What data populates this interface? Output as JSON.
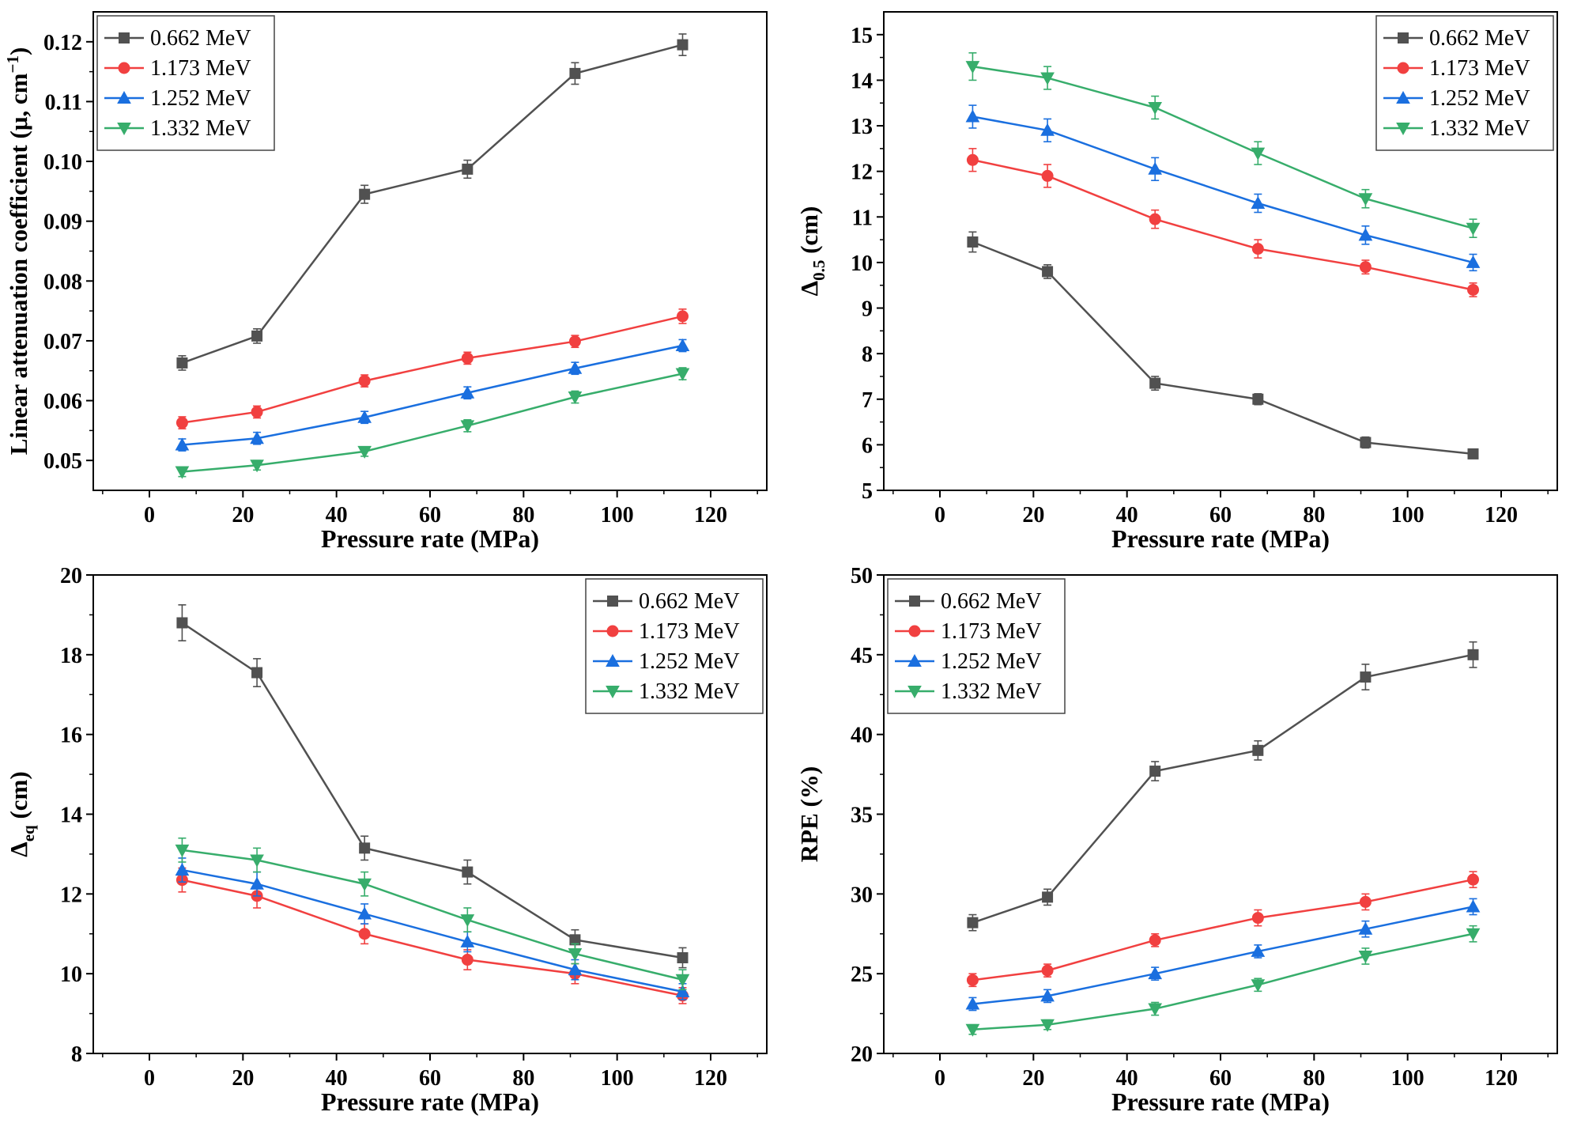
{
  "page": {
    "background": "#ffffff"
  },
  "colors": {
    "series": [
      "#515151",
      "#F14040",
      "#1A6FDF",
      "#37AD6B"
    ],
    "axis": "#000000",
    "legend_border": "#444444"
  },
  "markers": [
    "square",
    "circle",
    "triangle-up",
    "triangle-down"
  ],
  "legend_labels": [
    "0.662 MeV",
    "1.173 MeV",
    "1.252 MeV",
    "1.332 MeV"
  ],
  "chart_data": [
    {
      "type": "line",
      "title": "",
      "xlabel": "Pressure rate (MPa)",
      "ylabel": "Linear attenuation coefficient (μ, cm⁻¹)",
      "ylabel_rich": [
        [
          "Linear attenuation coefficient (μ, cm",
          ""
        ],
        [
          "−1",
          "sup"
        ],
        [
          ")",
          ""
        ]
      ],
      "x": [
        7,
        23,
        46,
        68,
        91,
        114
      ],
      "xlim": [
        -12,
        132
      ],
      "xticks": [
        0,
        20,
        40,
        60,
        80,
        100,
        120
      ],
      "x_minor_step": 10,
      "ylim": [
        0.045,
        0.125
      ],
      "yticks": [
        0.05,
        0.06,
        0.07,
        0.08,
        0.09,
        0.1,
        0.11,
        0.12
      ],
      "y_decimals": 2,
      "y_minor_step": 0.005,
      "legend_position": "top-left",
      "grid": false,
      "series": [
        {
          "name": "0.662 MeV",
          "values": [
            0.0663,
            0.0708,
            0.0945,
            0.0987,
            0.1147,
            0.1195
          ],
          "yerr": [
            0.0012,
            0.0012,
            0.0015,
            0.0015,
            0.0018,
            0.0018
          ]
        },
        {
          "name": "1.173 MeV",
          "values": [
            0.0563,
            0.0581,
            0.0633,
            0.0671,
            0.0699,
            0.0741
          ],
          "yerr": [
            0.001,
            0.001,
            0.001,
            0.001,
            0.001,
            0.0012
          ]
        },
        {
          "name": "1.252 MeV",
          "values": [
            0.0526,
            0.0537,
            0.0572,
            0.0613,
            0.0654,
            0.0692
          ],
          "yerr": [
            0.001,
            0.001,
            0.001,
            0.001,
            0.001,
            0.001
          ]
        },
        {
          "name": "1.332 MeV",
          "values": [
            0.0481,
            0.0492,
            0.0515,
            0.0558,
            0.0606,
            0.0645
          ],
          "yerr": [
            0.0008,
            0.0008,
            0.0008,
            0.001,
            0.001,
            0.001
          ]
        }
      ]
    },
    {
      "type": "line",
      "title": "",
      "xlabel": "Pressure rate (MPa)",
      "ylabel": "Δ0.5 (cm)",
      "ylabel_rich": [
        [
          "Δ",
          ""
        ],
        [
          "0.5",
          "sub"
        ],
        [
          " (cm)",
          ""
        ]
      ],
      "x": [
        7,
        23,
        46,
        68,
        91,
        114
      ],
      "xlim": [
        -12,
        132
      ],
      "xticks": [
        0,
        20,
        40,
        60,
        80,
        100,
        120
      ],
      "x_minor_step": 10,
      "ylim": [
        5,
        15.5
      ],
      "yticks": [
        5,
        6,
        7,
        8,
        9,
        10,
        11,
        12,
        13,
        14,
        15
      ],
      "y_decimals": 0,
      "y_minor_step": 0.5,
      "legend_position": "top-right",
      "grid": false,
      "series": [
        {
          "name": "0.662 MeV",
          "values": [
            10.45,
            9.8,
            7.35,
            7.0,
            6.05,
            5.8
          ],
          "yerr": [
            0.22,
            0.15,
            0.15,
            0.12,
            0.12,
            0.1
          ]
        },
        {
          "name": "1.173 MeV",
          "values": [
            12.25,
            11.9,
            10.95,
            10.3,
            9.9,
            9.4
          ],
          "yerr": [
            0.25,
            0.25,
            0.2,
            0.2,
            0.15,
            0.15
          ]
        },
        {
          "name": "1.252 MeV",
          "values": [
            13.2,
            12.9,
            12.05,
            11.3,
            10.6,
            10.0
          ],
          "yerr": [
            0.25,
            0.25,
            0.25,
            0.2,
            0.2,
            0.18
          ]
        },
        {
          "name": "1.332 MeV",
          "values": [
            14.3,
            14.05,
            13.4,
            12.4,
            11.4,
            10.75
          ],
          "yerr": [
            0.3,
            0.25,
            0.25,
            0.25,
            0.2,
            0.2
          ]
        }
      ]
    },
    {
      "type": "line",
      "title": "",
      "xlabel": "Pressure rate (MPa)",
      "ylabel": "Δeq (cm)",
      "ylabel_rich": [
        [
          "Δ",
          ""
        ],
        [
          "eq",
          "sub"
        ],
        [
          " (cm)",
          ""
        ]
      ],
      "x": [
        7,
        23,
        46,
        68,
        91,
        114
      ],
      "xlim": [
        -12,
        132
      ],
      "xticks": [
        0,
        20,
        40,
        60,
        80,
        100,
        120
      ],
      "x_minor_step": 10,
      "ylim": [
        8,
        20
      ],
      "yticks": [
        8,
        10,
        12,
        14,
        16,
        18,
        20
      ],
      "y_decimals": 0,
      "y_minor_step": 1,
      "legend_position": "top-right",
      "grid": false,
      "series": [
        {
          "name": "0.662 MeV",
          "values": [
            18.8,
            17.55,
            13.15,
            12.55,
            10.85,
            10.4
          ],
          "yerr": [
            0.45,
            0.35,
            0.3,
            0.3,
            0.25,
            0.25
          ]
        },
        {
          "name": "1.173 MeV",
          "values": [
            12.35,
            11.95,
            11.0,
            10.35,
            10.0,
            9.45
          ],
          "yerr": [
            0.3,
            0.3,
            0.25,
            0.25,
            0.25,
            0.2
          ]
        },
        {
          "name": "1.252 MeV",
          "values": [
            12.6,
            12.25,
            11.5,
            10.8,
            10.1,
            9.55
          ],
          "yerr": [
            0.3,
            0.3,
            0.25,
            0.25,
            0.25,
            0.2
          ]
        },
        {
          "name": "1.332 MeV",
          "values": [
            13.1,
            12.85,
            12.25,
            11.35,
            10.5,
            9.85
          ],
          "yerr": [
            0.3,
            0.3,
            0.3,
            0.3,
            0.25,
            0.25
          ]
        }
      ]
    },
    {
      "type": "line",
      "title": "",
      "xlabel": "Pressure rate (MPa)",
      "ylabel": "RPE (%)",
      "x": [
        7,
        23,
        46,
        68,
        91,
        114
      ],
      "xlim": [
        -12,
        132
      ],
      "xticks": [
        0,
        20,
        40,
        60,
        80,
        100,
        120
      ],
      "x_minor_step": 10,
      "ylim": [
        20,
        50
      ],
      "yticks": [
        20,
        25,
        30,
        35,
        40,
        45,
        50
      ],
      "y_decimals": 0,
      "y_minor_step": 2.5,
      "legend_position": "top-left",
      "grid": false,
      "series": [
        {
          "name": "0.662 MeV",
          "values": [
            28.2,
            29.8,
            37.7,
            39.0,
            43.6,
            45.0
          ],
          "yerr": [
            0.5,
            0.5,
            0.6,
            0.6,
            0.8,
            0.8
          ]
        },
        {
          "name": "1.173 MeV",
          "values": [
            24.6,
            25.2,
            27.1,
            28.5,
            29.5,
            30.9
          ],
          "yerr": [
            0.4,
            0.4,
            0.4,
            0.5,
            0.5,
            0.5
          ]
        },
        {
          "name": "1.252 MeV",
          "values": [
            23.1,
            23.6,
            25.0,
            26.4,
            27.8,
            29.2
          ],
          "yerr": [
            0.4,
            0.4,
            0.4,
            0.4,
            0.5,
            0.5
          ]
        },
        {
          "name": "1.332 MeV",
          "values": [
            21.5,
            21.8,
            22.8,
            24.3,
            26.1,
            27.5
          ],
          "yerr": [
            0.3,
            0.3,
            0.4,
            0.4,
            0.5,
            0.5
          ]
        }
      ]
    }
  ]
}
